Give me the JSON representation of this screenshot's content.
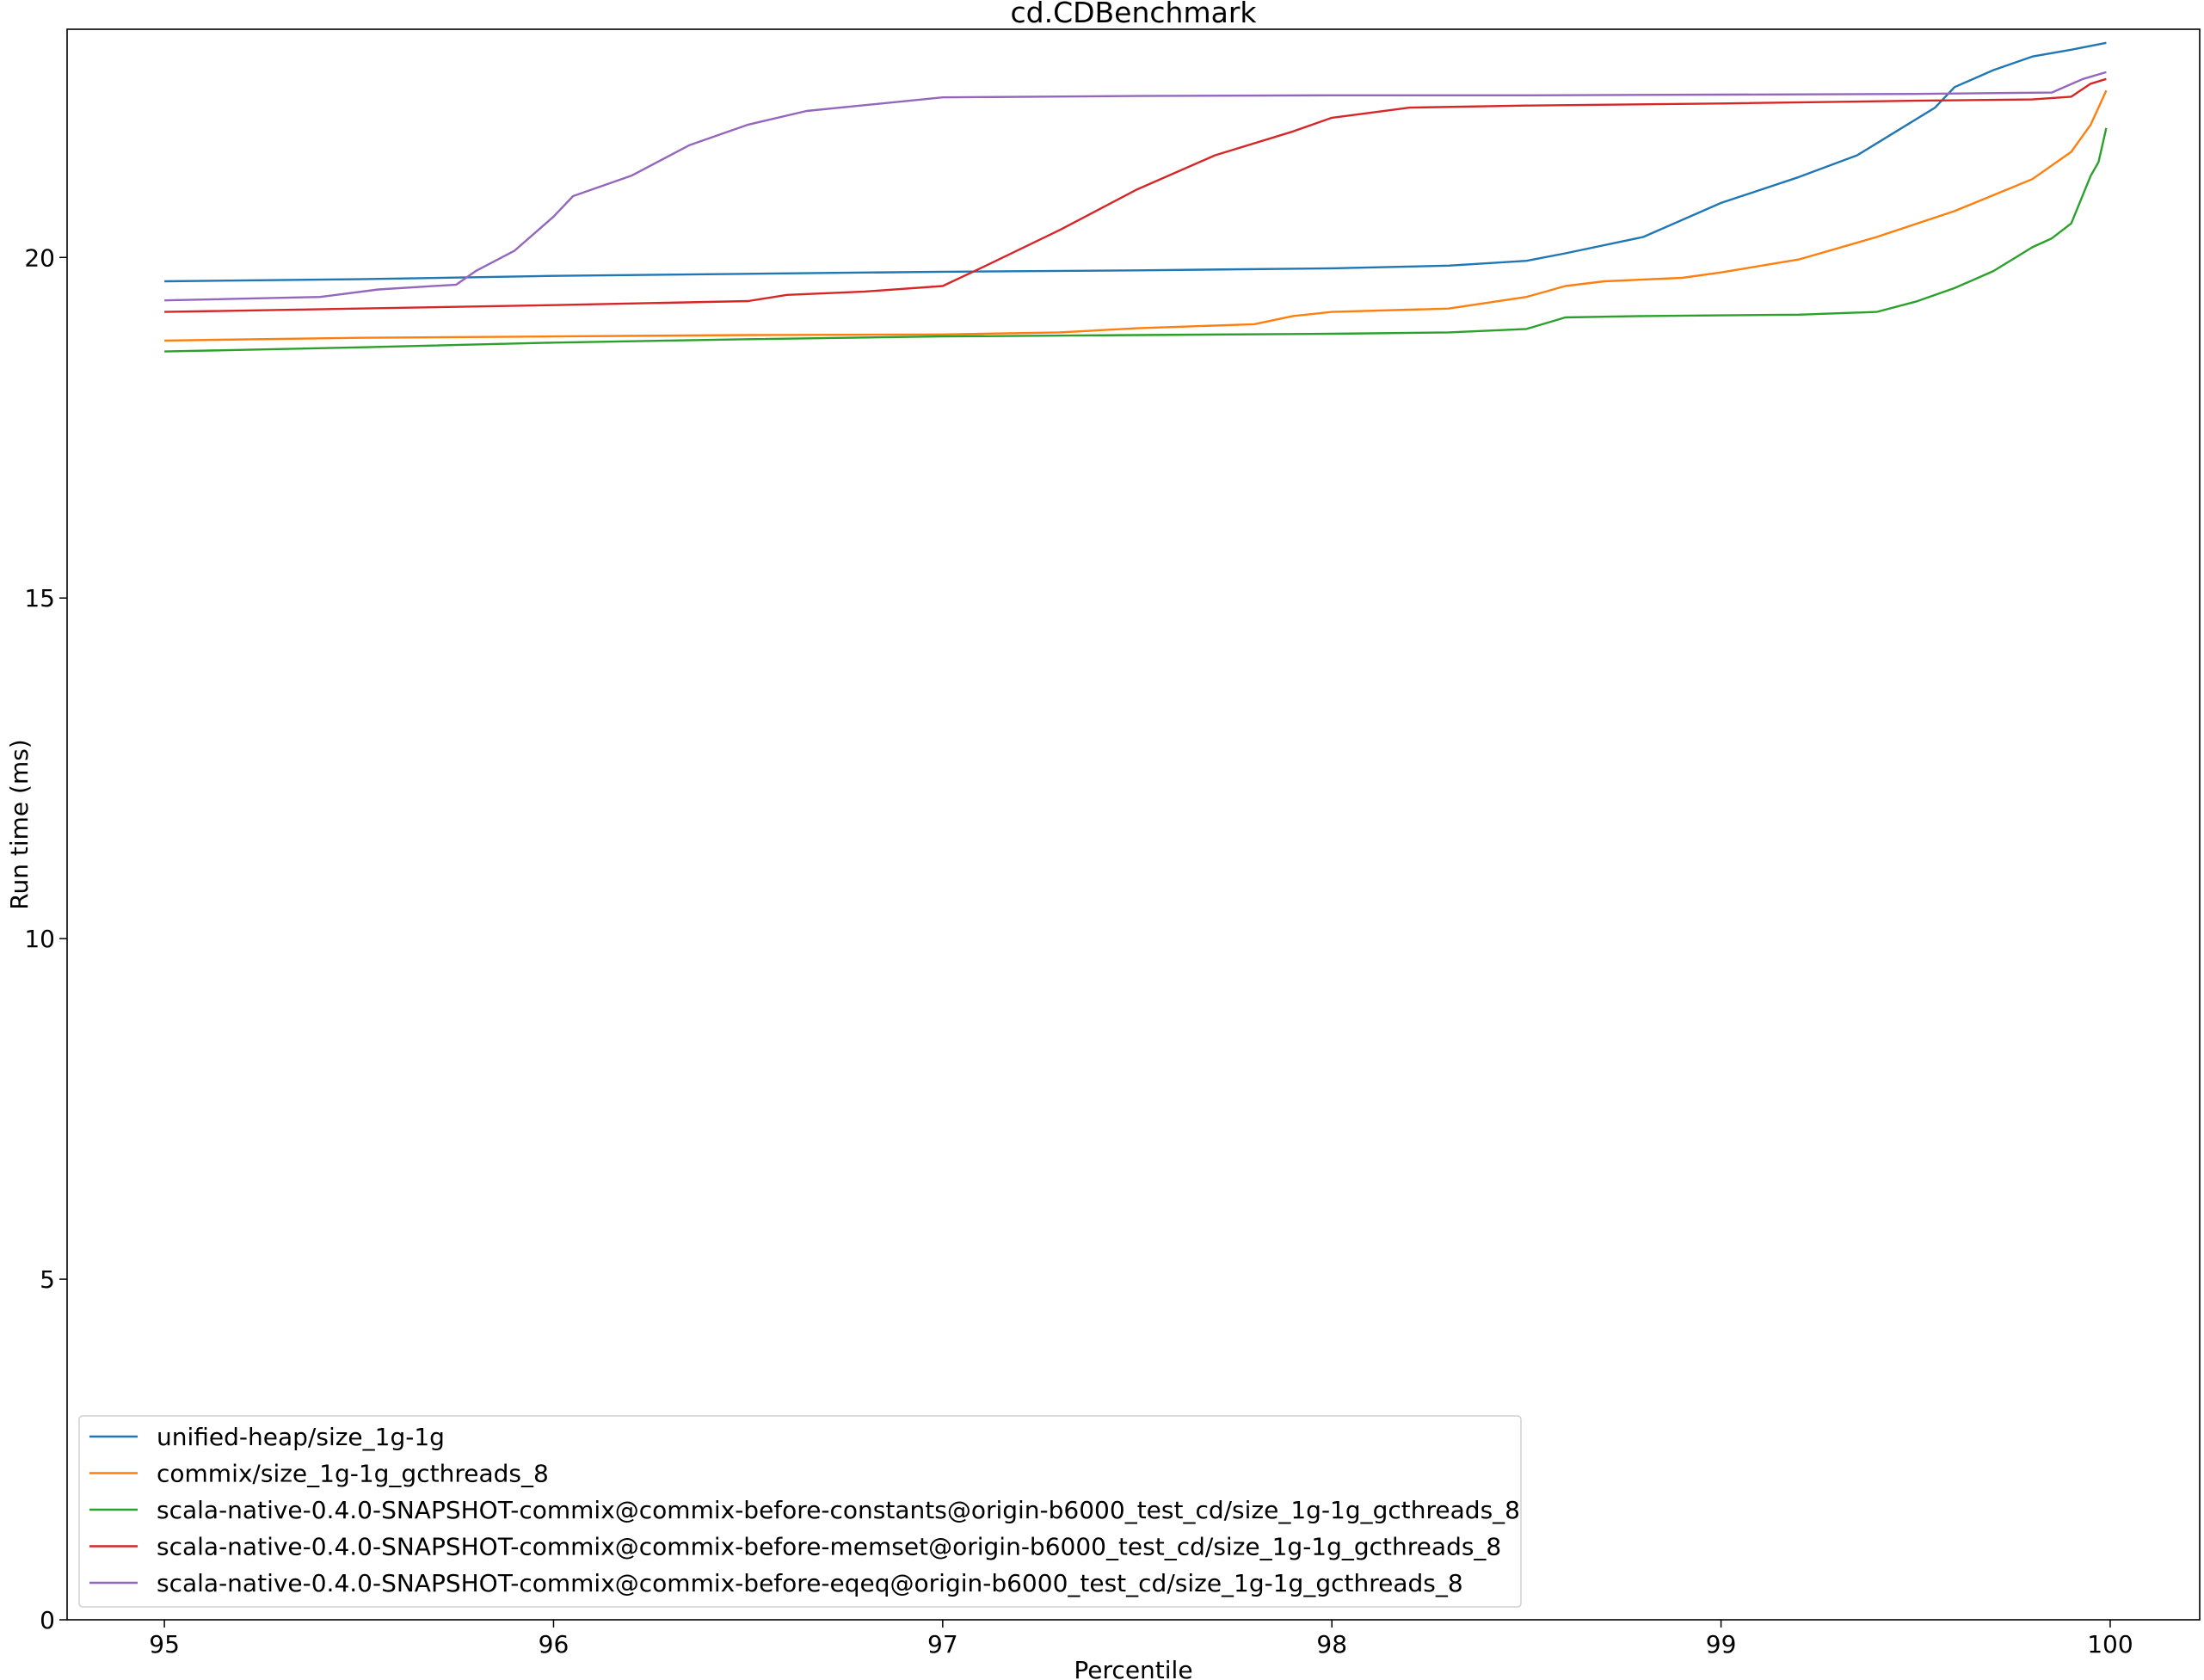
{
  "chart_data": {
    "type": "line",
    "title": "cd.CDBenchmark",
    "xlabel": "Percentile",
    "ylabel": "Run time (ms)",
    "xlim": [
      94.75,
      100.23
    ],
    "ylim": [
      0,
      23.35
    ],
    "xticks": [
      95,
      96,
      97,
      98,
      99,
      100
    ],
    "xtick_labels": [
      "95",
      "96",
      "97",
      "98",
      "99",
      "100"
    ],
    "yticks": [
      0,
      5,
      10,
      15,
      20
    ],
    "ytick_labels": [
      "0",
      "5",
      "10",
      "15",
      "20"
    ],
    "grid": false,
    "legend_position": "lower-left",
    "series": [
      {
        "name": "unified-heap/size_1g-1g",
        "color": "#1f77b4",
        "x": [
          95,
          95.5,
          96,
          96.5,
          97,
          97.5,
          98,
          98.3,
          98.5,
          98.6,
          98.8,
          99,
          99.2,
          99.35,
          99.45,
          99.55,
          99.6,
          99.7,
          99.8,
          99.9,
          99.99
        ],
        "y": [
          19.65,
          19.68,
          19.73,
          19.76,
          19.79,
          19.81,
          19.84,
          19.88,
          19.95,
          20.06,
          20.3,
          20.8,
          21.18,
          21.5,
          21.85,
          22.2,
          22.5,
          22.75,
          22.95,
          23.05,
          23.15
        ]
      },
      {
        "name": "commix/size_1g-1g_gcthreads_8",
        "color": "#ff7f0e",
        "x": [
          95,
          95.5,
          96,
          96.5,
          97,
          97.3,
          97.5,
          97.8,
          97.9,
          98,
          98.3,
          98.5,
          98.6,
          98.7,
          98.9,
          99,
          99.2,
          99.4,
          99.6,
          99.8,
          99.9,
          99.95,
          99.99
        ],
        "y": [
          18.78,
          18.82,
          18.84,
          18.86,
          18.87,
          18.9,
          18.96,
          19.02,
          19.14,
          19.2,
          19.25,
          19.42,
          19.58,
          19.65,
          19.7,
          19.78,
          19.97,
          20.3,
          20.68,
          21.15,
          21.55,
          21.95,
          22.45
        ]
      },
      {
        "name": "scala-native-0.4.0-SNAPSHOT-commix@commix-before-constants@origin-b6000_test_cd/size_1g-1g_gcthreads_8",
        "color": "#2ca02c",
        "x": [
          95,
          95.5,
          96,
          96.5,
          97,
          97.5,
          98,
          98.3,
          98.5,
          98.6,
          98.8,
          99,
          99.2,
          99.4,
          99.5,
          99.6,
          99.7,
          99.8,
          99.85,
          99.9,
          99.95,
          99.97,
          99.99
        ],
        "y": [
          18.62,
          18.68,
          18.75,
          18.8,
          18.84,
          18.86,
          18.88,
          18.9,
          18.95,
          19.12,
          19.14,
          19.15,
          19.16,
          19.2,
          19.35,
          19.55,
          19.8,
          20.15,
          20.28,
          20.5,
          21.2,
          21.4,
          21.9
        ]
      },
      {
        "name": "scala-native-0.4.0-SNAPSHOT-commix@commix-before-memset@origin-b6000_test_cd/size_1g-1g_gcthreads_8",
        "color": "#d62728",
        "x": [
          95,
          95.5,
          96,
          96.5,
          96.6,
          96.8,
          97,
          97.1,
          97.3,
          97.5,
          97.7,
          97.9,
          98,
          98.2,
          98.5,
          99,
          99.5,
          99.8,
          99.9,
          99.95,
          99.99
        ],
        "y": [
          19.2,
          19.25,
          19.3,
          19.36,
          19.45,
          19.5,
          19.58,
          19.85,
          20.4,
          21.0,
          21.5,
          21.85,
          22.05,
          22.2,
          22.23,
          22.26,
          22.3,
          22.32,
          22.36,
          22.55,
          22.62
        ]
      },
      {
        "name": "scala-native-0.4.0-SNAPSHOT-commix@commix-before-eqeq@origin-b6000_test_cd/size_1g-1g_gcthreads_8",
        "color": "#9467bd",
        "x": [
          95,
          95.4,
          95.55,
          95.75,
          95.8,
          95.9,
          96,
          96.05,
          96.2,
          96.35,
          96.5,
          96.65,
          97,
          97.5,
          98,
          98.5,
          99,
          99.5,
          99.85,
          99.93,
          99.99
        ],
        "y": [
          19.37,
          19.42,
          19.53,
          19.6,
          19.8,
          20.1,
          20.6,
          20.9,
          21.2,
          21.65,
          21.95,
          22.15,
          22.35,
          22.37,
          22.38,
          22.38,
          22.39,
          22.4,
          22.42,
          22.62,
          22.72
        ]
      }
    ]
  }
}
